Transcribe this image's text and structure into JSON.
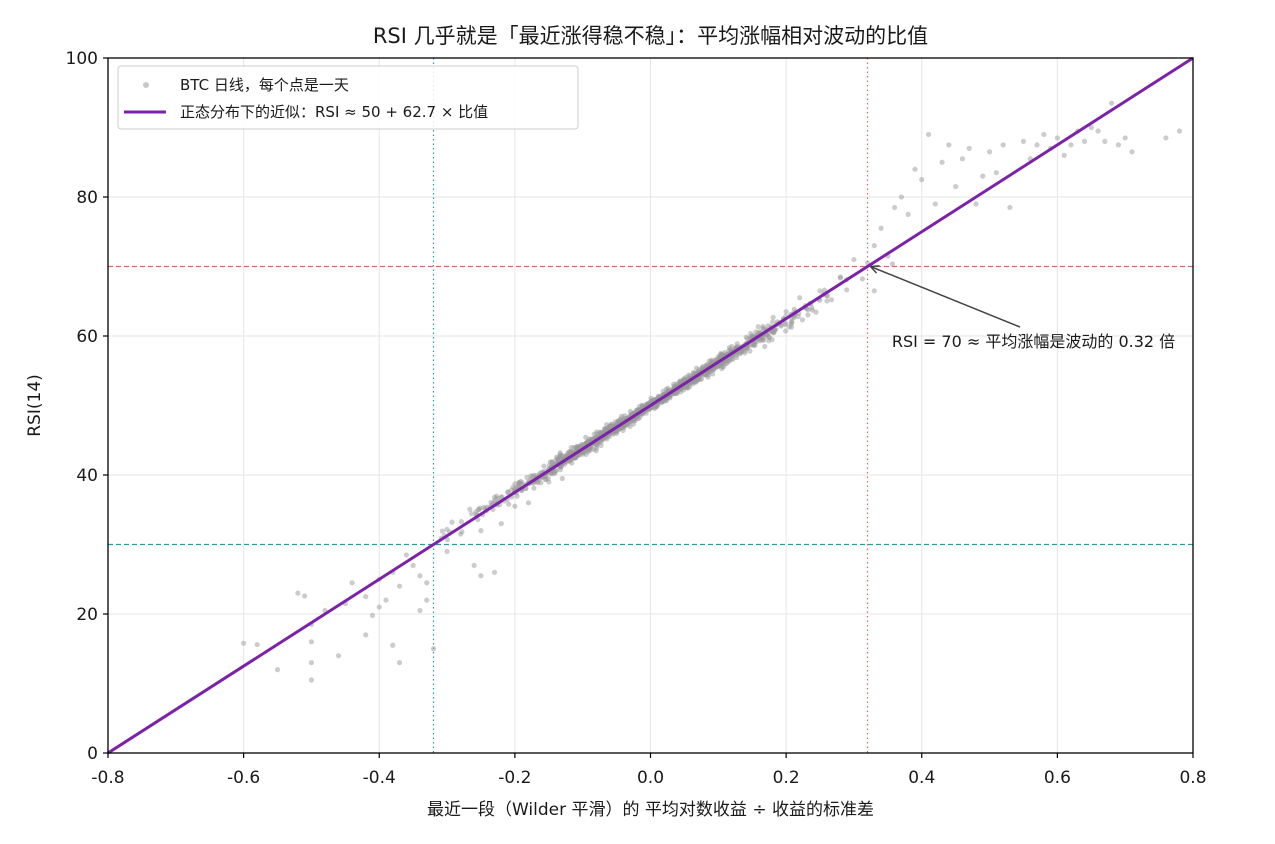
{
  "chart_data": {
    "type": "scatter",
    "title": "RSI 几乎就是「最近涨得稳不稳」：平均涨幅相对波动的比值",
    "xlabel": "最近一段（Wilder 平滑）的 平均对数收益 ÷ 收益的标准差",
    "ylabel": "RSI(14)",
    "xlim": [
      -0.8,
      0.8
    ],
    "ylim": [
      0,
      100
    ],
    "xticks": [
      -0.8,
      -0.6,
      -0.4,
      -0.2,
      0.0,
      0.2,
      0.4,
      0.6,
      0.8
    ],
    "xtick_labels": [
      "-0.8",
      "-0.6",
      "-0.4",
      "-0.2",
      "0.0",
      "0.2",
      "0.4",
      "0.6",
      "0.8"
    ],
    "yticks": [
      0,
      20,
      40,
      60,
      80,
      100
    ],
    "ytick_labels": [
      "0",
      "20",
      "40",
      "60",
      "80",
      "100"
    ],
    "grid": true,
    "legend_position": "top-left",
    "legend": [
      {
        "label": "BTC 日线，每个点是一天",
        "kind": "marker",
        "color": "#9a9a9a"
      },
      {
        "label": "正态分布下的近似：RSI ≈ 50 + 62.7 × 比值",
        "kind": "line",
        "color": "#7b22a8"
      }
    ],
    "fit_line": {
      "intercept": 50,
      "slope": 62.7,
      "color": "#7b22a8"
    },
    "reference_lines": [
      {
        "orientation": "horizontal",
        "value": 70,
        "style": "dashed",
        "color": "#e06666"
      },
      {
        "orientation": "horizontal",
        "value": 30,
        "style": "dashed",
        "color": "#2a9d9a"
      },
      {
        "orientation": "vertical",
        "value": 0.32,
        "style": "dotted",
        "color": "#e06666"
      },
      {
        "orientation": "vertical",
        "value": -0.32,
        "style": "dotted",
        "color": "#2a9d9a"
      }
    ],
    "annotation": {
      "text": "RSI = 70 ≈ 平均涨幅是波动的 0.32 倍",
      "point": [
        0.32,
        70
      ],
      "text_anchor_point": [
        0.35,
        59
      ]
    },
    "series": [
      {
        "name": "BTC 日线，每个点是一天",
        "color": "#9a9a9a",
        "points": [
          [
            -0.6,
            15.8
          ],
          [
            -0.58,
            15.6
          ],
          [
            -0.55,
            12.0
          ],
          [
            -0.52,
            23.0
          ],
          [
            -0.51,
            22.6
          ],
          [
            -0.5,
            18.5
          ],
          [
            -0.5,
            16.0
          ],
          [
            -0.5,
            13.0
          ],
          [
            -0.5,
            10.5
          ],
          [
            -0.48,
            20.5
          ],
          [
            -0.46,
            14.0
          ],
          [
            -0.45,
            21.5
          ],
          [
            -0.44,
            24.5
          ],
          [
            -0.42,
            17.0
          ],
          [
            -0.42,
            22.5
          ],
          [
            -0.41,
            19.8
          ],
          [
            -0.4,
            25.0
          ],
          [
            -0.4,
            21.0
          ],
          [
            -0.39,
            22.0
          ],
          [
            -0.38,
            26.0
          ],
          [
            -0.38,
            15.5
          ],
          [
            -0.37,
            24.0
          ],
          [
            -0.37,
            13.0
          ],
          [
            -0.36,
            28.5
          ],
          [
            -0.35,
            27.0
          ],
          [
            -0.34,
            20.5
          ],
          [
            -0.34,
            25.5
          ],
          [
            -0.33,
            22.0
          ],
          [
            -0.33,
            24.5
          ],
          [
            -0.32,
            15.0
          ],
          [
            -0.3,
            29.0
          ],
          [
            -0.28,
            31.5
          ],
          [
            -0.26,
            27.0
          ],
          [
            -0.25,
            32.0
          ],
          [
            -0.25,
            25.5
          ],
          [
            -0.23,
            26.0
          ],
          [
            -0.22,
            33.0
          ],
          [
            -0.2,
            35.5
          ],
          [
            -0.18,
            36.0
          ],
          [
            -0.15,
            39.0
          ],
          [
            -0.13,
            39.5
          ],
          [
            -0.1,
            43.0
          ],
          [
            -0.08,
            43.5
          ],
          [
            -0.05,
            46.0
          ],
          [
            -0.03,
            47.0
          ],
          [
            0.0,
            50.5
          ],
          [
            0.02,
            51.0
          ],
          [
            0.05,
            53.5
          ],
          [
            0.07,
            54.5
          ],
          [
            0.1,
            57.0
          ],
          [
            0.12,
            58.5
          ],
          [
            0.15,
            60.0
          ],
          [
            0.18,
            62.0
          ],
          [
            0.2,
            63.5
          ],
          [
            0.22,
            65.5
          ],
          [
            0.25,
            66.5
          ],
          [
            0.28,
            68.5
          ],
          [
            0.3,
            71.0
          ],
          [
            0.32,
            70.5
          ],
          [
            0.33,
            66.5
          ],
          [
            0.33,
            73.0
          ],
          [
            0.34,
            75.5
          ],
          [
            0.35,
            71.5
          ],
          [
            0.36,
            78.5
          ],
          [
            0.37,
            80.0
          ],
          [
            0.38,
            77.5
          ],
          [
            0.39,
            84.0
          ],
          [
            0.4,
            82.5
          ],
          [
            0.41,
            89.0
          ],
          [
            0.42,
            79.0
          ],
          [
            0.43,
            85.0
          ],
          [
            0.44,
            87.5
          ],
          [
            0.45,
            81.5
          ],
          [
            0.46,
            85.5
          ],
          [
            0.47,
            87.0
          ],
          [
            0.48,
            79.0
          ],
          [
            0.49,
            83.0
          ],
          [
            0.5,
            86.5
          ],
          [
            0.51,
            83.5
          ],
          [
            0.52,
            87.5
          ],
          [
            0.53,
            78.5
          ],
          [
            0.55,
            88.0
          ],
          [
            0.56,
            85.5
          ],
          [
            0.57,
            87.5
          ],
          [
            0.58,
            89.0
          ],
          [
            0.59,
            87.0
          ],
          [
            0.6,
            88.5
          ],
          [
            0.61,
            86.0
          ],
          [
            0.62,
            87.5
          ],
          [
            0.63,
            89.5
          ],
          [
            0.64,
            88.0
          ],
          [
            0.65,
            90.0
          ],
          [
            0.66,
            89.5
          ],
          [
            0.67,
            88.0
          ],
          [
            0.68,
            93.5
          ],
          [
            0.69,
            87.5
          ],
          [
            0.7,
            88.5
          ],
          [
            0.71,
            86.5
          ],
          [
            0.76,
            88.5
          ],
          [
            0.78,
            89.5
          ]
        ]
      }
    ]
  }
}
